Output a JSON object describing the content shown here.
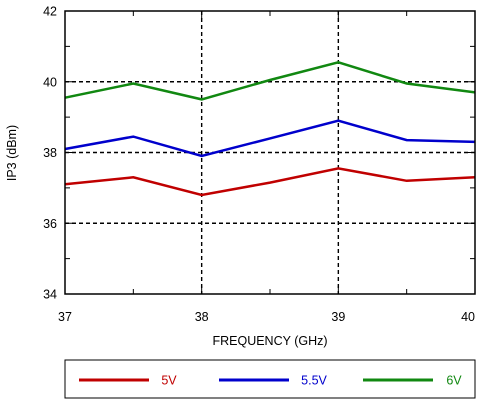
{
  "chart_data": {
    "type": "line",
    "title": "",
    "xlabel": "FREQUENCY (GHz)",
    "ylabel": "IP3 (dBm)",
    "xlim": [
      37,
      40
    ],
    "ylim": [
      34,
      42
    ],
    "x_ticks": [
      "37",
      "38",
      "39",
      "40"
    ],
    "y_ticks": [
      "34",
      "36",
      "38",
      "40",
      "42"
    ],
    "grid": "dashed at x = 38, 39 and y = 36, 38, 40",
    "legend_position": "bottom",
    "x": [
      37,
      37.5,
      38,
      38.5,
      39,
      39.5,
      40
    ],
    "series": [
      {
        "name": "5V",
        "color": "#c00000",
        "values": [
          37.1,
          37.3,
          36.8,
          37.15,
          37.55,
          37.2,
          37.3
        ]
      },
      {
        "name": "5.5V",
        "color": "#0000cc",
        "values": [
          38.1,
          38.45,
          37.9,
          38.4,
          38.9,
          38.35,
          38.3
        ]
      },
      {
        "name": "6V",
        "color": "#118811",
        "values": [
          39.55,
          39.95,
          39.5,
          40.05,
          40.55,
          39.95,
          39.7
        ]
      }
    ]
  }
}
